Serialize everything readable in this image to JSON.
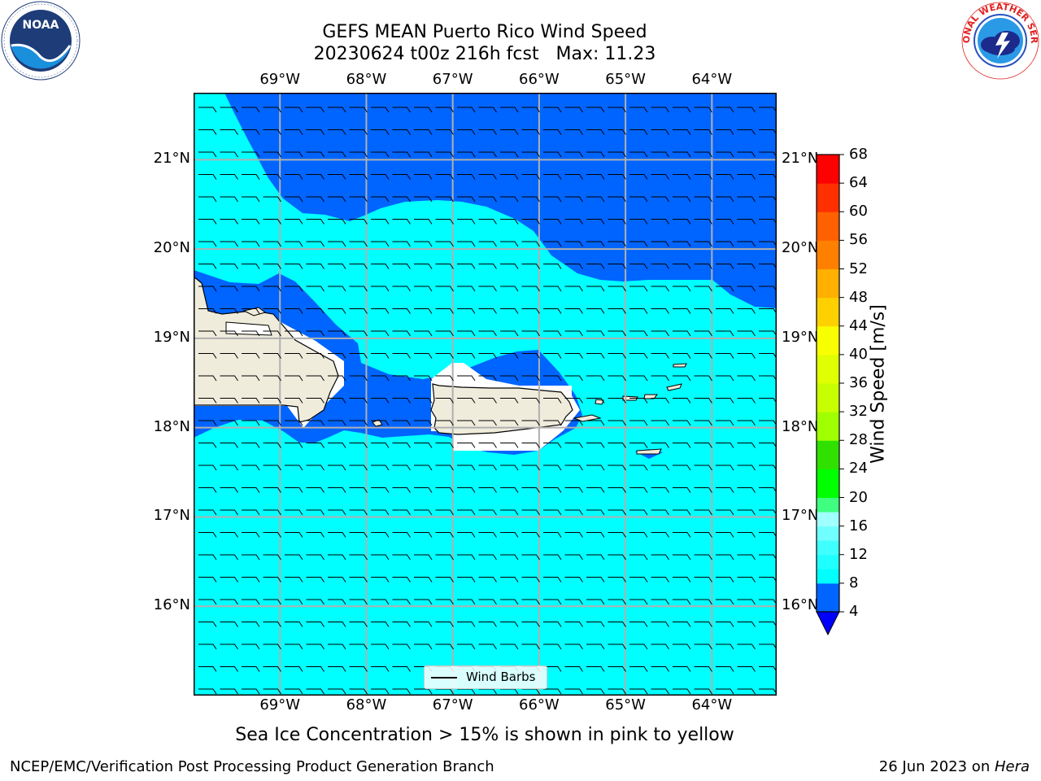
{
  "title": {
    "line1": "GEFS MEAN Puerto Rico Wind Speed",
    "line2": "20230624 t00z 216h fcst   Max: 11.23"
  },
  "axes": {
    "lon_labels": [
      "69°W",
      "68°W",
      "67°W",
      "66°W",
      "65°W",
      "64°W"
    ],
    "lat_labels": [
      "21°N",
      "20°N",
      "19°N",
      "18°N",
      "17°N",
      "16°N"
    ],
    "lon_values": [
      -69,
      -68,
      -67,
      -66,
      -65,
      -64
    ],
    "lat_values": [
      21,
      20,
      19,
      18,
      17,
      16
    ],
    "extent": {
      "lon_min": -70.0,
      "lon_max": -63.25,
      "lat_min": 15.0,
      "lat_max": 21.75
    }
  },
  "legend": {
    "label": "Wind Barbs"
  },
  "colorbar": {
    "label": "Wind Speed [m/s]",
    "ticks": [
      "68",
      "64",
      "60",
      "56",
      "52",
      "48",
      "44",
      "40",
      "36",
      "32",
      "28",
      "24",
      "20",
      "16",
      "12",
      "8",
      "4"
    ],
    "levels": [
      4,
      8,
      10,
      12,
      14,
      16,
      18,
      20,
      24,
      28,
      32,
      36,
      40,
      44,
      48,
      52,
      56,
      60,
      64,
      68
    ],
    "colors": [
      "#0064ff",
      "#00ffff",
      "#20ffff",
      "#40ffff",
      "#70ffff",
      "#a0ffff",
      "#40ff80",
      "#00ff00",
      "#30e000",
      "#a0ff00",
      "#c8ff00",
      "#e0ff00",
      "#f8ff00",
      "#ffd000",
      "#ffb000",
      "#ff8000",
      "#ff6000",
      "#ff3000",
      "#ff0000"
    ],
    "extend_color": "#0000ff"
  },
  "caption": "Sea Ice Concentration > 15% is shown in pink to yellow",
  "footer": {
    "left": "NCEP/EMC/Verification Post Processing Product Generation Branch",
    "date": "26 Jun 2023 on ",
    "host": "Hera"
  },
  "logos": {
    "noaa_text": "NOAA",
    "nws_text": "NATIONAL WEATHER SERVICE"
  },
  "chart_data": {
    "type": "filled-contour-map",
    "region": "Puerto Rico",
    "variable": "Wind Speed",
    "units": "m/s",
    "max_value": 11.23,
    "colors": {
      "4-8": "#0064ff",
      "8-10": "#00ffff",
      "land": "#efecdc"
    }
  }
}
